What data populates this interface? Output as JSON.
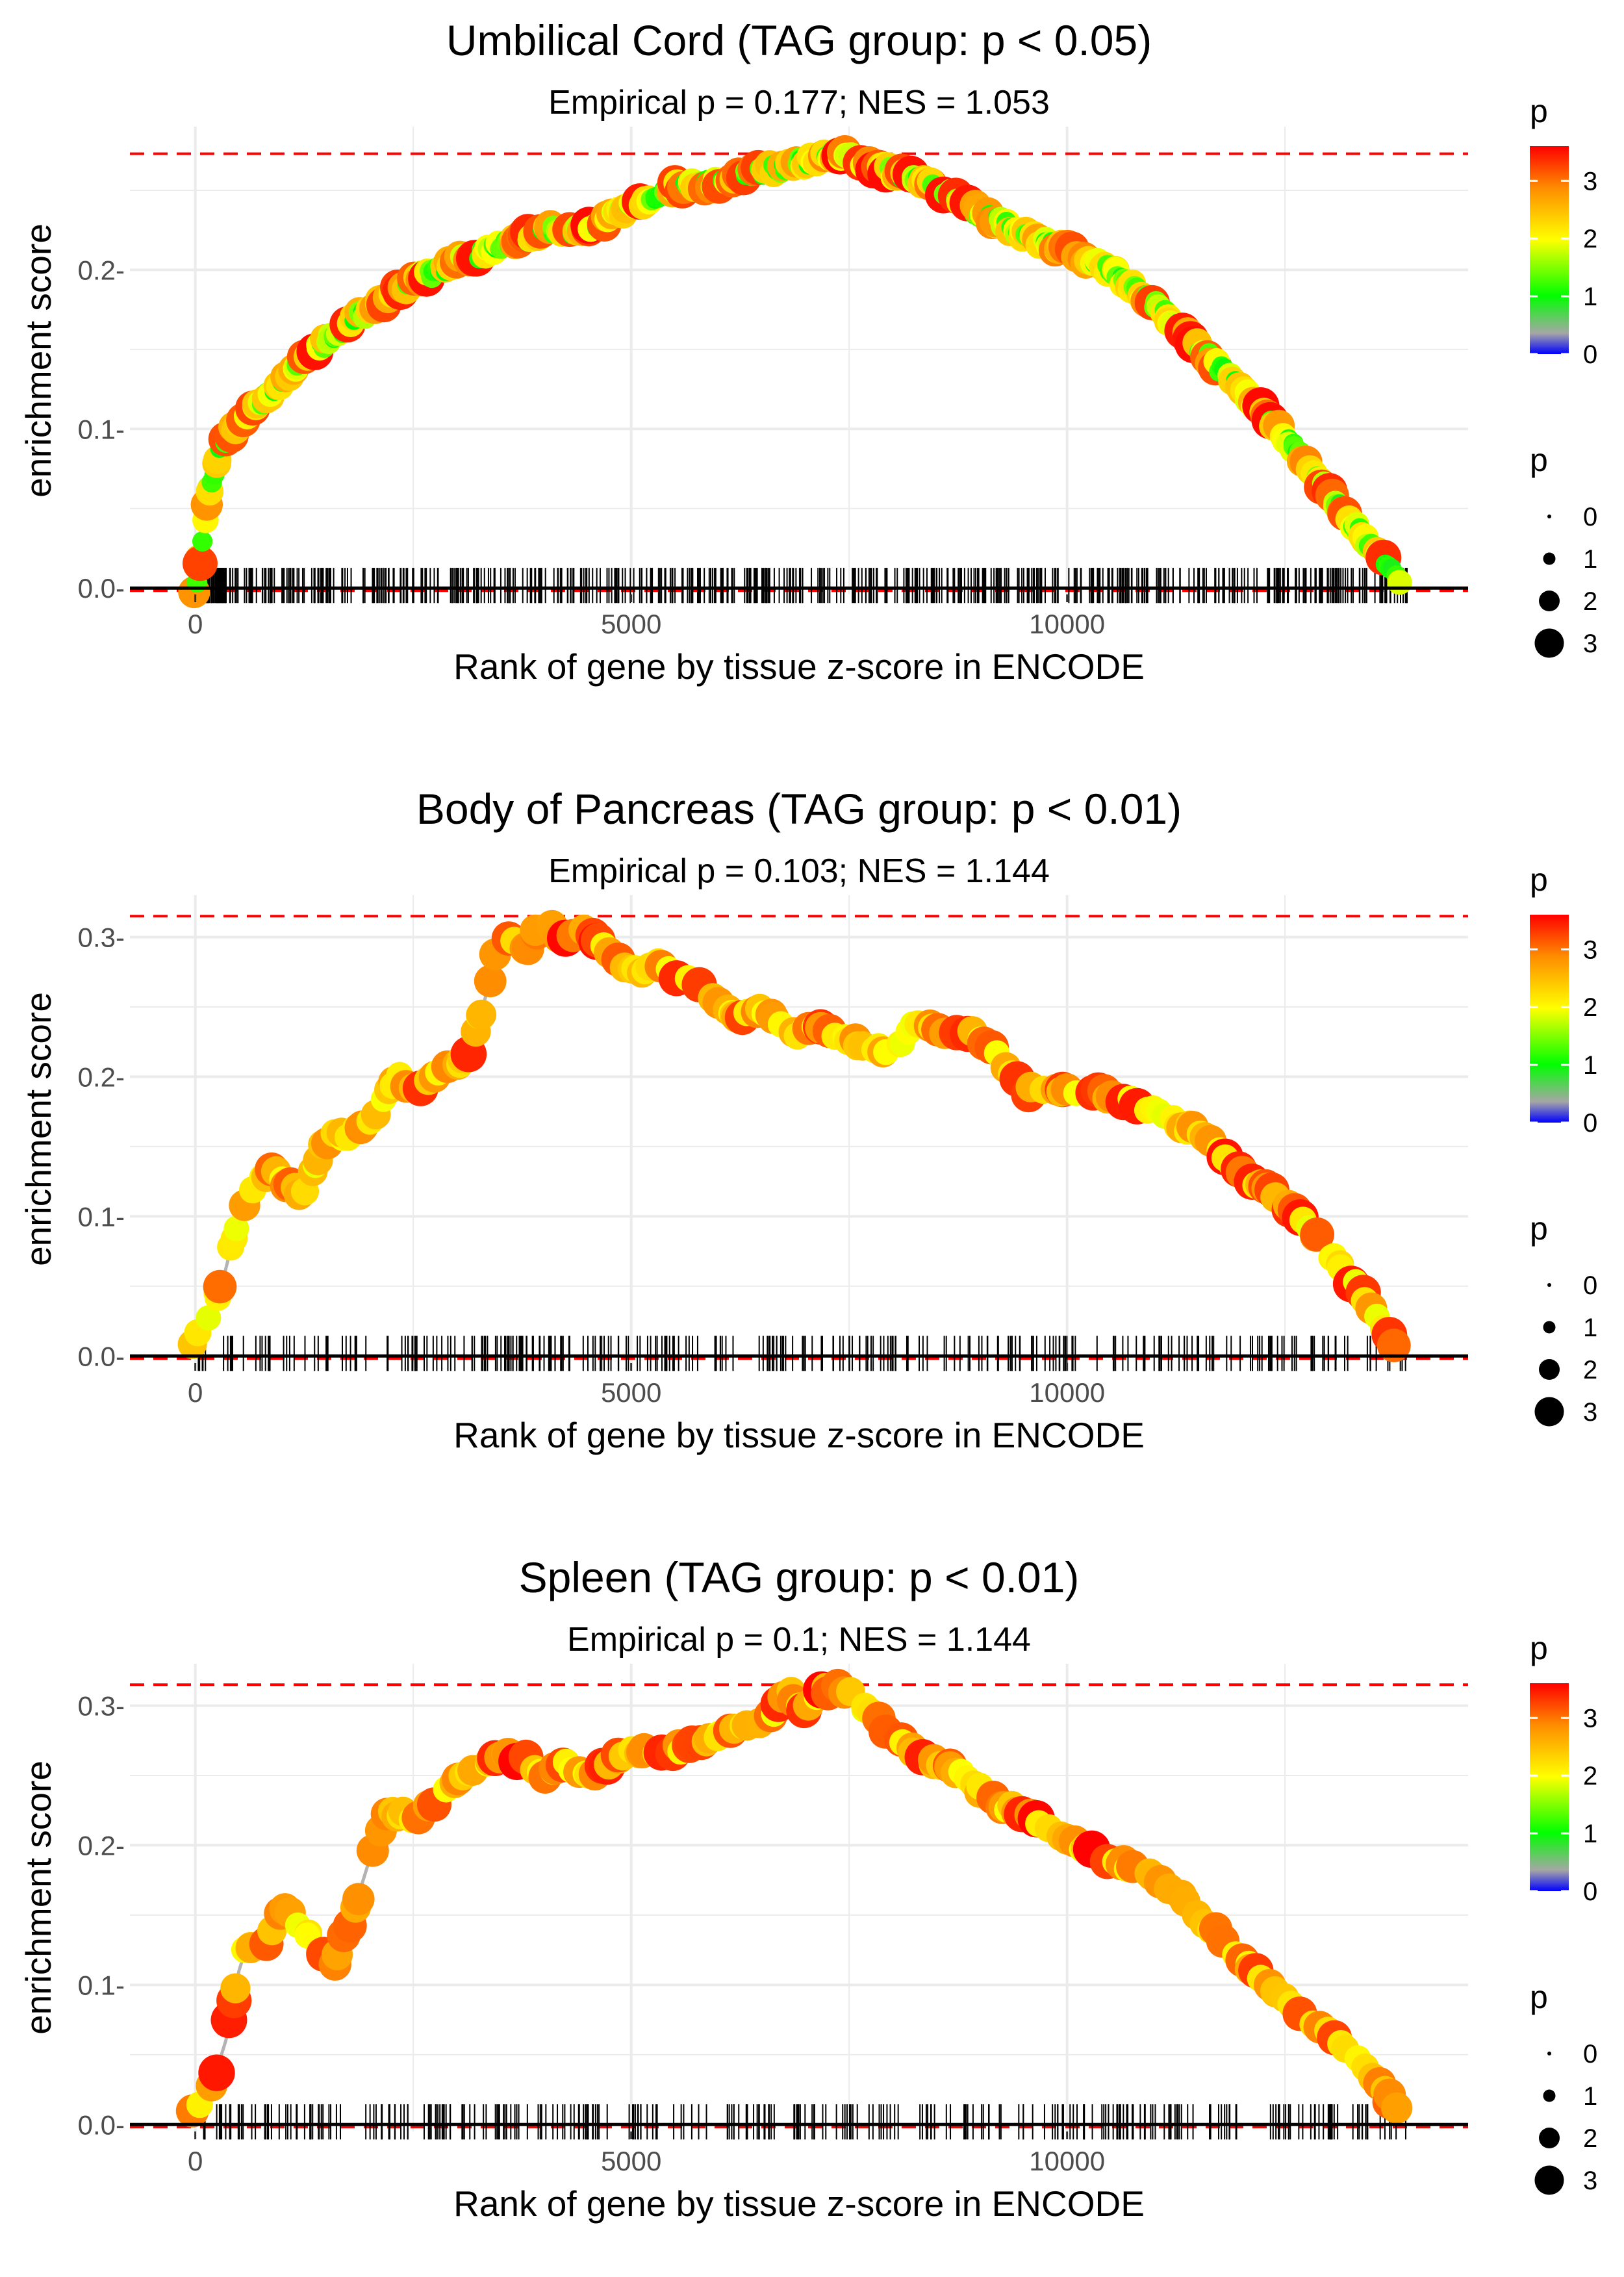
{
  "colors": {
    "threshold": "#ff0000",
    "zero_line": "#000000",
    "running_line": "#b3b3b3",
    "grid": "#ebebeb",
    "gradient": [
      "#0000ff",
      "#a6a6a6",
      "#00ff00",
      "#ffff00",
      "#ff8c00",
      "#ff0000"
    ]
  },
  "chart_data": [
    {
      "type": "line",
      "title": "Umbilical Cord (TAG group: p < 0.05)",
      "subtitle": "Empirical p = 0.177; NES = 1.053",
      "xlabel": "Rank of gene by tissue z-score in ENCODE",
      "ylabel": "enrichment score",
      "xlim": [
        -750,
        14600
      ],
      "ylim": [
        -0.004,
        0.29
      ],
      "x_ticks": [
        0,
        5000,
        10000
      ],
      "x_tick_labels": [
        "0",
        "5000",
        "10000"
      ],
      "y_ticks": [
        0.0,
        0.1,
        0.2
      ],
      "y_tick_labels": [
        "0.0-",
        "0.1-",
        "0.2-"
      ],
      "max_es": 0.273,
      "series": [
        {
          "name": "running enrichment score",
          "x": [
            0,
            60,
            150,
            300,
            500,
            800,
            1200,
            1500,
            2000,
            2500,
            3000,
            3500,
            4000,
            4500,
            5000,
            5500,
            6000,
            6500,
            7000,
            7400,
            7800,
            8500,
            9000,
            9500,
            10000,
            10500,
            11000,
            11500,
            12000,
            12500,
            13000,
            13500,
            13800
          ],
          "y": [
            0.0,
            0.02,
            0.06,
            0.09,
            0.105,
            0.12,
            0.14,
            0.155,
            0.175,
            0.193,
            0.205,
            0.215,
            0.225,
            0.225,
            0.24,
            0.252,
            0.255,
            0.262,
            0.268,
            0.273,
            0.265,
            0.252,
            0.236,
            0.222,
            0.212,
            0.2,
            0.178,
            0.152,
            0.125,
            0.095,
            0.06,
            0.025,
            0.005
          ]
        }
      ],
      "legend": {
        "color_title": "p",
        "color_tick_labels": [
          "0",
          "1",
          "2",
          "3"
        ],
        "color_range": [
          0,
          3.6
        ],
        "size_title": "p",
        "size_labels": [
          "0",
          "1",
          "2",
          "3"
        ]
      }
    },
    {
      "type": "line",
      "title": "Body of Pancreas (TAG group: p < 0.01)",
      "subtitle": "Empirical p = 0.103; NES = 1.144",
      "xlabel": "Rank of gene by tissue z-score in ENCODE",
      "ylabel": "enrichment score",
      "xlim": [
        -750,
        14600
      ],
      "ylim": [
        -0.005,
        0.33
      ],
      "x_ticks": [
        0,
        5000,
        10000
      ],
      "x_tick_labels": [
        "0",
        "5000",
        "10000"
      ],
      "y_ticks": [
        0.0,
        0.1,
        0.2,
        0.3
      ],
      "y_tick_labels": [
        "0.0-",
        "0.1-",
        "0.2-",
        "0.3-"
      ],
      "max_es": 0.315,
      "series": [
        {
          "name": "running enrichment score",
          "x": [
            0,
            150,
            300,
            500,
            700,
            900,
            1000,
            1250,
            1500,
            1800,
            2000,
            2300,
            2600,
            2900,
            3100,
            3300,
            3500,
            3800,
            4000,
            4200,
            4500,
            5000,
            5300,
            5800,
            6200,
            6500,
            6800,
            7200,
            7500,
            7800,
            8000,
            8200,
            8500,
            9000,
            9500,
            9800,
            10200,
            10600,
            11000,
            11500,
            12000,
            12500,
            13000,
            13500,
            13800
          ],
          "y": [
            0.01,
            0.03,
            0.05,
            0.1,
            0.125,
            0.135,
            0.125,
            0.115,
            0.155,
            0.16,
            0.165,
            0.2,
            0.19,
            0.21,
            0.21,
            0.25,
            0.3,
            0.29,
            0.315,
            0.3,
            0.305,
            0.275,
            0.28,
            0.265,
            0.24,
            0.25,
            0.23,
            0.235,
            0.225,
            0.22,
            0.215,
            0.235,
            0.235,
            0.23,
            0.19,
            0.19,
            0.19,
            0.185,
            0.175,
            0.16,
            0.13,
            0.11,
            0.075,
            0.035,
            0.005
          ]
        }
      ],
      "legend": {
        "color_title": "p",
        "color_tick_labels": [
          "0",
          "1",
          "2",
          "3"
        ],
        "color_range": [
          0,
          3.6
        ],
        "size_title": "p",
        "size_labels": [
          "0",
          "1",
          "2",
          "3"
        ]
      }
    },
    {
      "type": "line",
      "title": "Spleen (TAG group: p < 0.01)",
      "subtitle": "Empirical p = 0.1; NES = 1.144",
      "xlabel": "Rank of gene by tissue z-score in ENCODE",
      "ylabel": "enrichment score",
      "xlim": [
        -750,
        14600
      ],
      "ylim": [
        -0.005,
        0.33
      ],
      "x_ticks": [
        0,
        5000,
        10000
      ],
      "x_tick_labels": [
        "0",
        "5000",
        "10000"
      ],
      "y_ticks": [
        0.0,
        0.1,
        0.2,
        0.3
      ],
      "y_tick_labels": [
        "0.0-",
        "0.1-",
        "0.2-",
        "0.3-"
      ],
      "max_es": 0.315,
      "series": [
        {
          "name": "running enrichment score",
          "x": [
            0,
            200,
            350,
            500,
            600,
            750,
            900,
            1000,
            1500,
            1600,
            1800,
            2000,
            2200,
            2500,
            2800,
            3000,
            3300,
            3500,
            3800,
            4000,
            4200,
            4500,
            5000,
            5300,
            5600,
            6000,
            6300,
            6600,
            6800,
            7000,
            7200,
            7400,
            7800,
            8200,
            8800,
            9200,
            9600,
            10000,
            10500,
            11000,
            11500,
            12000,
            12500,
            13000,
            13500,
            13800
          ],
          "y": [
            0.01,
            0.03,
            0.06,
            0.11,
            0.13,
            0.12,
            0.145,
            0.155,
            0.12,
            0.115,
            0.15,
            0.19,
            0.225,
            0.22,
            0.23,
            0.25,
            0.255,
            0.265,
            0.26,
            0.25,
            0.26,
            0.25,
            0.27,
            0.265,
            0.27,
            0.28,
            0.285,
            0.29,
            0.31,
            0.295,
            0.31,
            0.315,
            0.29,
            0.27,
            0.25,
            0.23,
            0.22,
            0.205,
            0.19,
            0.18,
            0.15,
            0.12,
            0.09,
            0.065,
            0.035,
            0.01
          ]
        }
      ],
      "legend": {
        "color_title": "p",
        "color_tick_labels": [
          "0",
          "1",
          "2",
          "3"
        ],
        "color_range": [
          0,
          3.6
        ],
        "size_title": "p",
        "size_labels": [
          "0",
          "1",
          "2",
          "3"
        ]
      }
    }
  ]
}
